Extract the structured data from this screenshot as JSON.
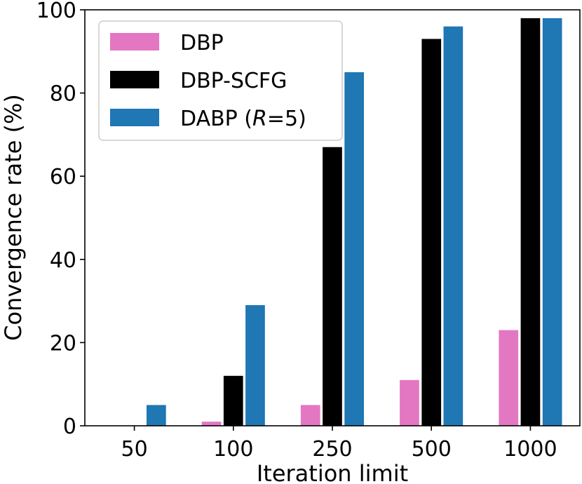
{
  "chart_data": {
    "type": "bar",
    "title": "",
    "xlabel": "Iteration limit",
    "ylabel": "Convergence rate (%)",
    "ylim": [
      0,
      100
    ],
    "yticks": [
      0,
      20,
      40,
      60,
      80,
      100
    ],
    "categories": [
      "50",
      "100",
      "250",
      "500",
      "1000"
    ],
    "series": [
      {
        "name": "DBP",
        "legend_parts": [
          "DBP"
        ],
        "color": "#e377c2",
        "values": [
          0,
          1,
          5,
          11,
          23
        ]
      },
      {
        "name": "DBP-SCFG",
        "legend_parts": [
          "DBP-SCFG"
        ],
        "color": "#000000",
        "values": [
          0,
          12,
          67,
          93,
          98
        ]
      },
      {
        "name": "DABP (R=5)",
        "legend_parts": [
          "DABP (",
          "R",
          "=5)"
        ],
        "color": "#1f77b4",
        "values": [
          5,
          29,
          85,
          96,
          98
        ]
      }
    ],
    "legend_position": "top-left",
    "grid": false
  }
}
